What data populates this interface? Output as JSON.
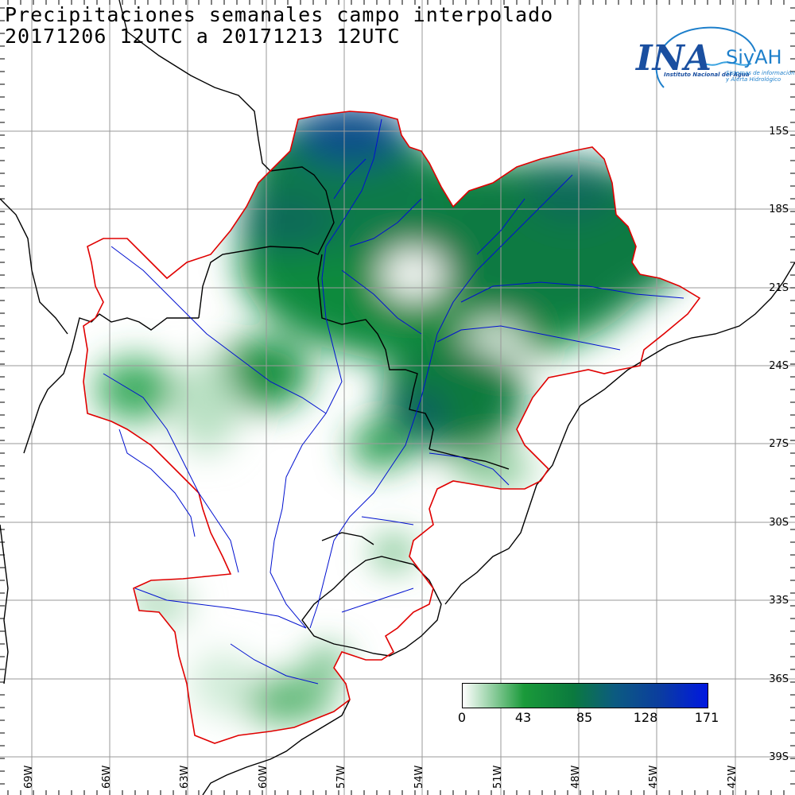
{
  "title": {
    "line1": "Precipitaciones semanales campo interpolado",
    "line2": "20171206 12UTC a 20171213 12UTC"
  },
  "logo": {
    "name": "INA",
    "product": "SiyAH",
    "institution": "Instituto Nacional del Agua",
    "product_full": "Sistemas de información y Alerta Hidrológico"
  },
  "lat_labels": [
    "15S",
    "18S",
    "21S",
    "24S",
    "27S",
    "30S",
    "33S",
    "36S",
    "39S"
  ],
  "lon_labels": [
    "69W",
    "66W",
    "63W",
    "60W",
    "57W",
    "54W",
    "51W",
    "48W",
    "45W",
    "42W"
  ],
  "colorbar": {
    "ticks": [
      "0",
      "43",
      "85",
      "128",
      "171"
    ],
    "colors": [
      "#ffffff",
      "#1a9a3a",
      "#0b7a3e",
      "#0c5b80",
      "#0b3e9e",
      "#0018e0"
    ]
  },
  "colors": {
    "basin_outline": "#e00000",
    "rivers": "#0010d0",
    "borders": "#000000",
    "grid": "#9a9a9a"
  }
}
